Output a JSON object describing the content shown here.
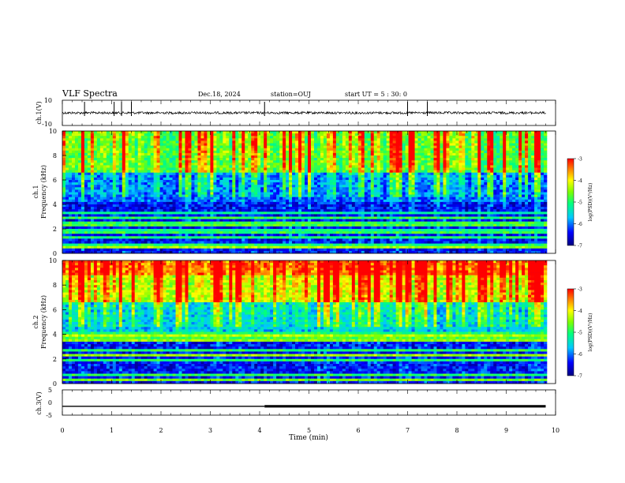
{
  "header": {
    "title": "VLF Spectra",
    "date": "Dec.18, 2024",
    "station": "station=OUJ",
    "start": "start  UT =  5 : 30: 0"
  },
  "colors": {
    "spec_low": "#000080",
    "spec_mid": "#00ff80",
    "spec_high": "#ff0000",
    "waveform": "#000000",
    "axis": "#000000"
  },
  "chart_data": [
    {
      "id": "ch1-waveform",
      "type": "line",
      "ylabel": "ch.1(V)",
      "ylim": [
        -10,
        10
      ],
      "yticks": [
        "10",
        "-10"
      ],
      "xlim": [
        0,
        10
      ],
      "baseline": 0,
      "spikes": [
        0.45,
        1.05,
        1.2,
        1.4,
        4.1,
        7.0,
        7.4
      ]
    },
    {
      "id": "ch1-spectrogram",
      "type": "heatmap",
      "ylabel": "ch.1\nFrequency (kHz)",
      "ylim": [
        0,
        10
      ],
      "yticks": [
        "0",
        "2",
        "4",
        "6",
        "8",
        "10"
      ],
      "xlim": [
        0,
        9.8
      ],
      "colorbar": {
        "label": "log(PSD)(V²/Hz)",
        "range": [
          -7,
          -3
        ],
        "ticks": [
          "-3",
          "-4",
          "-5",
          "-6",
          "-7"
        ]
      }
    },
    {
      "id": "ch2-spectrogram",
      "type": "heatmap",
      "ylabel": "ch.2\nFrequency (kHz)",
      "ylim": [
        0,
        10
      ],
      "yticks": [
        "0",
        "2",
        "4",
        "6",
        "8",
        "10"
      ],
      "xlim": [
        0,
        9.8
      ],
      "colorbar": {
        "label": "log(PSD)(V²/Hz)",
        "range": [
          -7,
          -3
        ],
        "ticks": [
          "-3",
          "-4",
          "-5",
          "-6",
          "-7"
        ]
      }
    },
    {
      "id": "ch3-waveform",
      "type": "line",
      "ylabel": "ch.3(V)",
      "ylim": [
        -5,
        5
      ],
      "yticks": [
        "5",
        "0",
        "-5"
      ],
      "xlim": [
        0,
        10
      ],
      "level": -1.5,
      "thicken_from": 4.1
    }
  ],
  "xaxis": {
    "label": "Time (min)",
    "range": [
      0,
      10
    ],
    "ticks": [
      "0",
      "1",
      "2",
      "3",
      "4",
      "5",
      "6",
      "7",
      "8",
      "9",
      "10"
    ]
  }
}
